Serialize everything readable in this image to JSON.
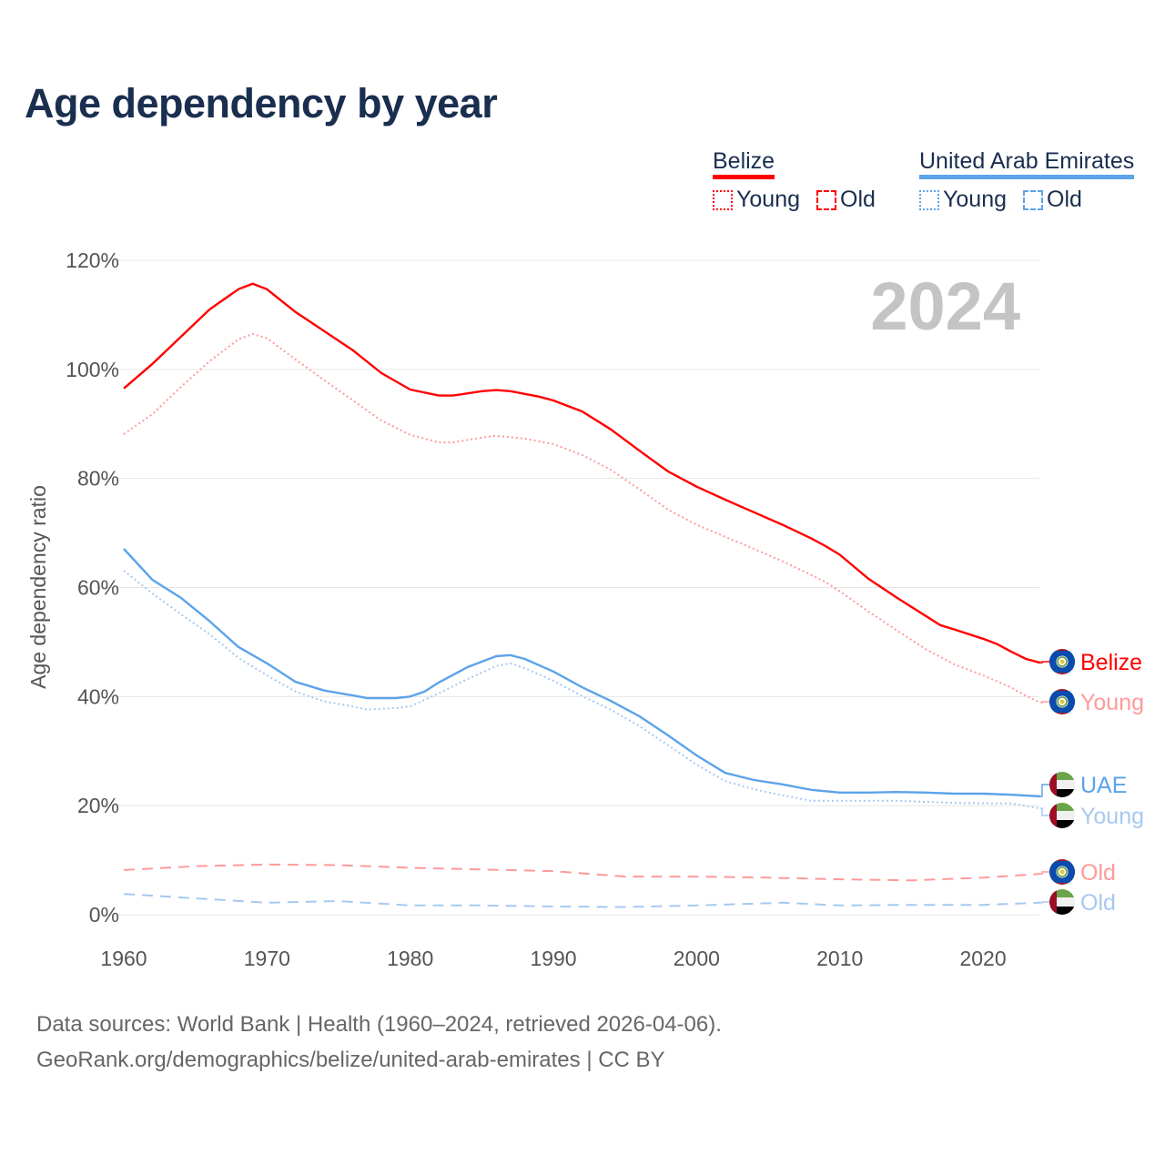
{
  "title": "Age dependency by year",
  "legend": {
    "groups": [
      {
        "name": "Belize",
        "color": "#ff0000",
        "items": [
          {
            "label": "Young",
            "style": "dotted"
          },
          {
            "label": "Old",
            "style": "dashed"
          }
        ]
      },
      {
        "name": "United Arab Emirates",
        "color": "#5ba3ea",
        "items": [
          {
            "label": "Young",
            "style": "dotted"
          },
          {
            "label": "Old",
            "style": "dashed"
          }
        ]
      }
    ]
  },
  "source": {
    "line1": "Data sources: World Bank | Health (1960–2024, retrieved 2026-04-06).",
    "line2": "GeoRank.org/demographics/belize/united-arab-emirates | CC BY"
  },
  "chart_data": {
    "type": "line",
    "title": "Age dependency by year",
    "year_label": "2024",
    "xlabel": "",
    "ylabel": "Age dependency ratio",
    "xlim": [
      1960,
      2024
    ],
    "ylim": [
      0,
      120
    ],
    "x_ticks": [
      "1960",
      "1970",
      "1980",
      "1990",
      "2000",
      "2010",
      "2020"
    ],
    "y_ticks": [
      "0%",
      "20%",
      "40%",
      "60%",
      "80%",
      "100%",
      "120%"
    ],
    "grid": true,
    "series": [
      {
        "name": "Belize",
        "label": "Belize",
        "flag": "belize",
        "color": "#ff0000",
        "style": "solid",
        "points": [
          [
            1960,
            96.5
          ],
          [
            1962,
            101
          ],
          [
            1964,
            106
          ],
          [
            1966,
            111
          ],
          [
            1968,
            114.7
          ],
          [
            1969,
            115.7
          ],
          [
            1970,
            114.7
          ],
          [
            1972,
            110.5
          ],
          [
            1974,
            107
          ],
          [
            1976,
            103.5
          ],
          [
            1978,
            99.3
          ],
          [
            1980,
            96.3
          ],
          [
            1982,
            95.2
          ],
          [
            1983,
            95.2
          ],
          [
            1985,
            96
          ],
          [
            1986,
            96.2
          ],
          [
            1987,
            96
          ],
          [
            1989,
            95
          ],
          [
            1990,
            94.3
          ],
          [
            1992,
            92.3
          ],
          [
            1994,
            89
          ],
          [
            1996,
            85.1
          ],
          [
            1998,
            81.3
          ],
          [
            2000,
            78.5
          ],
          [
            2002,
            76.1
          ],
          [
            2004,
            73.8
          ],
          [
            2006,
            71.5
          ],
          [
            2008,
            69
          ],
          [
            2009,
            67.6
          ],
          [
            2010,
            66
          ],
          [
            2012,
            61.6
          ],
          [
            2014,
            58.1
          ],
          [
            2016,
            54.8
          ],
          [
            2017,
            53.1
          ],
          [
            2018,
            52.3
          ],
          [
            2020,
            50.6
          ],
          [
            2021,
            49.6
          ],
          [
            2022,
            48.2
          ],
          [
            2023,
            46.9
          ],
          [
            2024,
            46.2
          ]
        ]
      },
      {
        "name": "Belize Young",
        "label": "Young",
        "flag": "belize",
        "color": "#ff9a9a",
        "style": "dotted",
        "points": [
          [
            1960,
            88.1
          ],
          [
            1962,
            91.8
          ],
          [
            1964,
            96.8
          ],
          [
            1966,
            101.5
          ],
          [
            1968,
            105.5
          ],
          [
            1969,
            106.5
          ],
          [
            1970,
            105.7
          ],
          [
            1972,
            101.8
          ],
          [
            1974,
            98
          ],
          [
            1976,
            94.3
          ],
          [
            1978,
            90.6
          ],
          [
            1980,
            88
          ],
          [
            1982,
            86.6
          ],
          [
            1983,
            86.6
          ],
          [
            1985,
            87.5
          ],
          [
            1986,
            87.8
          ],
          [
            1988,
            87.3
          ],
          [
            1990,
            86.3
          ],
          [
            1992,
            84.3
          ],
          [
            1994,
            81.6
          ],
          [
            1996,
            78
          ],
          [
            1998,
            74.3
          ],
          [
            2000,
            71.5
          ],
          [
            2002,
            69.3
          ],
          [
            2004,
            67.1
          ],
          [
            2006,
            64.8
          ],
          [
            2008,
            62.3
          ],
          [
            2009,
            61
          ],
          [
            2010,
            59.3
          ],
          [
            2012,
            55.6
          ],
          [
            2014,
            52.1
          ],
          [
            2016,
            48.7
          ],
          [
            2018,
            45.9
          ],
          [
            2020,
            43.9
          ],
          [
            2022,
            41.6
          ],
          [
            2023,
            40.1
          ],
          [
            2024,
            38.9
          ]
        ]
      },
      {
        "name": "United Arab Emirates",
        "label": "UAE",
        "flag": "uae",
        "color": "#5ba3ea",
        "style": "solid",
        "points": [
          [
            1960,
            67.1
          ],
          [
            1962,
            61.4
          ],
          [
            1964,
            58.1
          ],
          [
            1966,
            53.8
          ],
          [
            1968,
            49.1
          ],
          [
            1970,
            46.1
          ],
          [
            1972,
            42.7
          ],
          [
            1974,
            41.1
          ],
          [
            1976,
            40.2
          ],
          [
            1977,
            39.7
          ],
          [
            1979,
            39.7
          ],
          [
            1980,
            40
          ],
          [
            1981,
            40.9
          ],
          [
            1982,
            42.6
          ],
          [
            1984,
            45.4
          ],
          [
            1986,
            47.4
          ],
          [
            1987,
            47.6
          ],
          [
            1988,
            46.9
          ],
          [
            1990,
            44.6
          ],
          [
            1992,
            41.7
          ],
          [
            1994,
            39.2
          ],
          [
            1996,
            36.4
          ],
          [
            1998,
            32.9
          ],
          [
            2000,
            29.2
          ],
          [
            2002,
            26
          ],
          [
            2004,
            24.7
          ],
          [
            2006,
            23.9
          ],
          [
            2008,
            22.9
          ],
          [
            2010,
            22.4
          ],
          [
            2012,
            22.4
          ],
          [
            2014,
            22.5
          ],
          [
            2016,
            22.4
          ],
          [
            2018,
            22.2
          ],
          [
            2020,
            22.2
          ],
          [
            2022,
            22
          ],
          [
            2024,
            21.7
          ]
        ]
      },
      {
        "name": "United Arab Emirates Young",
        "label": "Young",
        "flag": "uae",
        "color": "#a6c9f0",
        "style": "dotted",
        "points": [
          [
            1960,
            63.1
          ],
          [
            1962,
            58.9
          ],
          [
            1964,
            55.1
          ],
          [
            1966,
            51.4
          ],
          [
            1968,
            47.1
          ],
          [
            1970,
            43.9
          ],
          [
            1972,
            40.9
          ],
          [
            1974,
            39.1
          ],
          [
            1976,
            38.2
          ],
          [
            1977,
            37.6
          ],
          [
            1979,
            37.9
          ],
          [
            1980,
            38.2
          ],
          [
            1982,
            40.6
          ],
          [
            1984,
            43.2
          ],
          [
            1986,
            45.6
          ],
          [
            1987,
            46.1
          ],
          [
            1988,
            45.2
          ],
          [
            1990,
            42.9
          ],
          [
            1992,
            40.1
          ],
          [
            1994,
            37.6
          ],
          [
            1996,
            34.6
          ],
          [
            1998,
            31.1
          ],
          [
            2000,
            27.5
          ],
          [
            2002,
            24.5
          ],
          [
            2004,
            23
          ],
          [
            2006,
            21.9
          ],
          [
            2008,
            20.9
          ],
          [
            2010,
            20.9
          ],
          [
            2014,
            20.9
          ],
          [
            2018,
            20.5
          ],
          [
            2022,
            20.4
          ],
          [
            2024,
            19.5
          ]
        ]
      },
      {
        "name": "Belize Old",
        "label": "Old",
        "flag": "belize",
        "color": "#ff9a9a",
        "style": "dashed",
        "points": [
          [
            1960,
            8.2
          ],
          [
            1965,
            8.9
          ],
          [
            1970,
            9.2
          ],
          [
            1975,
            9.1
          ],
          [
            1980,
            8.6
          ],
          [
            1985,
            8.3
          ],
          [
            1990,
            8.0
          ],
          [
            1995,
            7.0
          ],
          [
            2000,
            7.0
          ],
          [
            2005,
            6.8
          ],
          [
            2010,
            6.5
          ],
          [
            2015,
            6.3
          ],
          [
            2020,
            6.8
          ],
          [
            2024,
            7.5
          ]
        ]
      },
      {
        "name": "United Arab Emirates Old",
        "label": "Old",
        "flag": "uae",
        "color": "#a6c9f0",
        "style": "dashed",
        "points": [
          [
            1960,
            3.8
          ],
          [
            1965,
            3.0
          ],
          [
            1970,
            2.2
          ],
          [
            1975,
            2.5
          ],
          [
            1980,
            1.7
          ],
          [
            1985,
            1.7
          ],
          [
            1990,
            1.5
          ],
          [
            1995,
            1.4
          ],
          [
            2000,
            1.7
          ],
          [
            2006,
            2.2
          ],
          [
            2010,
            1.7
          ],
          [
            2015,
            1.8
          ],
          [
            2020,
            1.8
          ],
          [
            2024,
            2.2
          ]
        ]
      }
    ]
  }
}
